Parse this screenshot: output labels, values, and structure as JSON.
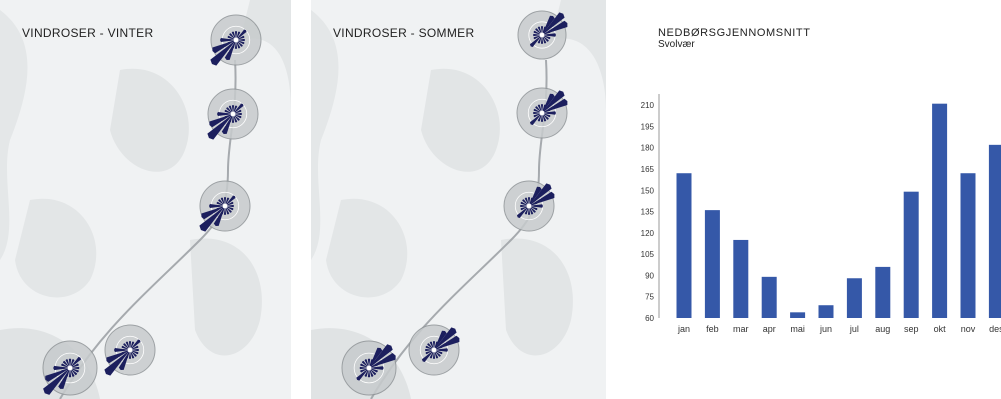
{
  "maps": [
    {
      "title": "VINDROSER - VINTER",
      "season": "winter"
    },
    {
      "title": "VINDROSER - SOMMER",
      "season": "summer"
    }
  ],
  "colors": {
    "rose": "#1c1f5e",
    "bar": "#3558a8",
    "land": "#e3e6e7",
    "water": "#f0f2f3",
    "road": "#a6aaae"
  },
  "chart": {
    "title": "NEDBØRSGJENNOMSNITT",
    "subtitle": "Svolvær"
  },
  "chart_data": {
    "type": "bar",
    "title": "NEDBØRSGJENNOMSNITT",
    "subtitle": "Svolvær",
    "categories": [
      "jan",
      "feb",
      "mar",
      "apr",
      "mai",
      "jun",
      "jul",
      "aug",
      "sep",
      "okt",
      "nov",
      "des"
    ],
    "values": [
      162,
      136,
      115,
      89,
      64,
      69,
      88,
      96,
      149,
      211,
      162,
      182
    ],
    "y_ticks": [
      60,
      75,
      90,
      105,
      120,
      135,
      150,
      165,
      180,
      195,
      210
    ],
    "ylim": [
      60,
      215
    ],
    "grid": false,
    "legend": "none"
  }
}
